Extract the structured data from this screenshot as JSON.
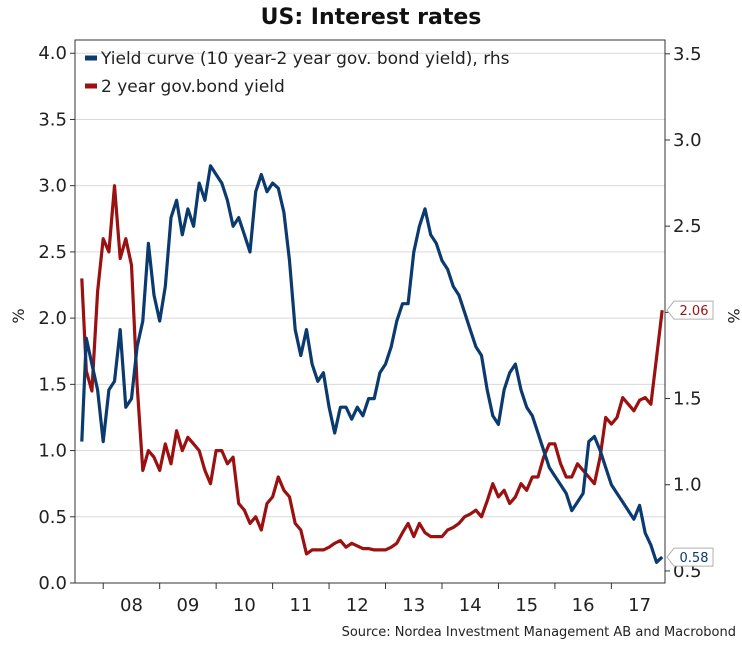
{
  "colors": {
    "yield_curve": "#0b3a6e",
    "two_year": "#9b1010",
    "grid": "#d9d9d9",
    "axis": "#333333"
  },
  "chart_data": {
    "type": "line",
    "title": "US: Interest rates",
    "source": "Source: Nordea Investment Management AB and Macrobond",
    "x_tick_labels": [
      "08",
      "09",
      "10",
      "11",
      "12",
      "13",
      "14",
      "15",
      "16",
      "17"
    ],
    "x_tick_positions": [
      2008,
      2009,
      2010,
      2011,
      2012,
      2013,
      2014,
      2015,
      2016,
      2017
    ],
    "xlim": [
      2007.5,
      2017.95
    ],
    "left_axis": {
      "label": "%",
      "range": [
        0,
        4.1
      ],
      "ticks": [
        "0.0",
        "0.5",
        "1.0",
        "1.5",
        "2.0",
        "2.5",
        "3.0",
        "3.5",
        "4.0"
      ]
    },
    "right_axis": {
      "label": "%",
      "range": [
        0.43,
        3.58
      ],
      "ticks": [
        "0.5",
        "1.0",
        "1.5",
        "2.0",
        "2.5",
        "3.0",
        "3.5"
      ]
    },
    "grid": true,
    "legend_position": "top-left",
    "series": [
      {
        "name": "Yield curve (10 year-2 year gov. bond yield), rhs",
        "axis": "right",
        "end_label": "0.58",
        "x": [
          2007.62,
          2007.7,
          2007.8,
          2007.9,
          2008.0,
          2008.1,
          2008.2,
          2008.3,
          2008.4,
          2008.5,
          2008.6,
          2008.7,
          2008.8,
          2008.9,
          2009.0,
          2009.1,
          2009.2,
          2009.3,
          2009.4,
          2009.5,
          2009.6,
          2009.7,
          2009.8,
          2009.9,
          2010.0,
          2010.1,
          2010.2,
          2010.3,
          2010.4,
          2010.5,
          2010.6,
          2010.7,
          2010.8,
          2010.9,
          2011.0,
          2011.1,
          2011.2,
          2011.3,
          2011.4,
          2011.5,
          2011.6,
          2011.7,
          2011.8,
          2011.9,
          2012.0,
          2012.1,
          2012.2,
          2012.3,
          2012.4,
          2012.5,
          2012.6,
          2012.7,
          2012.8,
          2012.9,
          2013.0,
          2013.1,
          2013.2,
          2013.3,
          2013.4,
          2013.5,
          2013.6,
          2013.7,
          2013.8,
          2013.9,
          2014.0,
          2014.1,
          2014.2,
          2014.3,
          2014.4,
          2014.5,
          2014.6,
          2014.7,
          2014.8,
          2014.9,
          2015.0,
          2015.1,
          2015.2,
          2015.3,
          2015.4,
          2015.5,
          2015.6,
          2015.7,
          2015.8,
          2015.9,
          2016.0,
          2016.1,
          2016.2,
          2016.3,
          2016.4,
          2016.5,
          2016.6,
          2016.7,
          2016.8,
          2016.9,
          2017.0,
          2017.1,
          2017.2,
          2017.3,
          2017.4,
          2017.5,
          2017.6,
          2017.7,
          2017.8,
          2017.9
        ],
        "y": [
          1.25,
          1.85,
          1.7,
          1.55,
          1.25,
          1.55,
          1.6,
          1.9,
          1.45,
          1.5,
          1.8,
          1.95,
          2.4,
          2.1,
          1.95,
          2.15,
          2.55,
          2.65,
          2.45,
          2.6,
          2.5,
          2.75,
          2.65,
          2.85,
          2.8,
          2.75,
          2.65,
          2.5,
          2.55,
          2.45,
          2.35,
          2.7,
          2.8,
          2.7,
          2.75,
          2.72,
          2.58,
          2.3,
          1.9,
          1.75,
          1.9,
          1.7,
          1.6,
          1.65,
          1.45,
          1.3,
          1.45,
          1.45,
          1.38,
          1.45,
          1.4,
          1.5,
          1.5,
          1.65,
          1.7,
          1.8,
          1.95,
          2.05,
          2.05,
          2.35,
          2.5,
          2.6,
          2.45,
          2.4,
          2.3,
          2.25,
          2.15,
          2.1,
          2.0,
          1.9,
          1.8,
          1.75,
          1.55,
          1.4,
          1.35,
          1.55,
          1.65,
          1.7,
          1.55,
          1.45,
          1.4,
          1.3,
          1.2,
          1.1,
          1.05,
          1.0,
          0.95,
          0.85,
          0.9,
          0.95,
          1.25,
          1.28,
          1.2,
          1.1,
          1.0,
          0.95,
          0.9,
          0.85,
          0.8,
          0.88,
          0.72,
          0.65,
          0.55,
          0.58
        ]
      },
      {
        "name": "2 year gov.bond yield",
        "axis": "left",
        "end_label": "2.06",
        "x": [
          2007.62,
          2007.7,
          2007.8,
          2007.9,
          2008.0,
          2008.1,
          2008.2,
          2008.3,
          2008.4,
          2008.5,
          2008.6,
          2008.7,
          2008.8,
          2008.9,
          2009.0,
          2009.1,
          2009.2,
          2009.3,
          2009.4,
          2009.5,
          2009.6,
          2009.7,
          2009.8,
          2009.9,
          2010.0,
          2010.1,
          2010.2,
          2010.3,
          2010.4,
          2010.5,
          2010.6,
          2010.7,
          2010.8,
          2010.9,
          2011.0,
          2011.1,
          2011.2,
          2011.3,
          2011.4,
          2011.5,
          2011.6,
          2011.7,
          2011.8,
          2011.9,
          2012.0,
          2012.1,
          2012.2,
          2012.3,
          2012.4,
          2012.5,
          2012.6,
          2012.7,
          2012.8,
          2012.9,
          2013.0,
          2013.1,
          2013.2,
          2013.3,
          2013.4,
          2013.5,
          2013.6,
          2013.7,
          2013.8,
          2013.9,
          2014.0,
          2014.1,
          2014.2,
          2014.3,
          2014.4,
          2014.5,
          2014.6,
          2014.7,
          2014.8,
          2014.9,
          2015.0,
          2015.1,
          2015.2,
          2015.3,
          2015.4,
          2015.5,
          2015.6,
          2015.7,
          2015.8,
          2015.9,
          2016.0,
          2016.1,
          2016.2,
          2016.3,
          2016.4,
          2016.5,
          2016.6,
          2016.7,
          2016.8,
          2016.9,
          2017.0,
          2017.1,
          2017.2,
          2017.3,
          2017.4,
          2017.5,
          2017.6,
          2017.7,
          2017.8,
          2017.9
        ],
        "y": [
          2.3,
          1.6,
          1.45,
          2.2,
          2.6,
          2.5,
          3.0,
          2.45,
          2.6,
          2.4,
          1.5,
          0.85,
          1.0,
          0.95,
          0.85,
          1.05,
          0.9,
          1.15,
          1.0,
          1.1,
          1.05,
          1.0,
          0.85,
          0.75,
          1.0,
          1.0,
          0.9,
          0.95,
          0.6,
          0.55,
          0.45,
          0.5,
          0.4,
          0.6,
          0.65,
          0.8,
          0.7,
          0.65,
          0.45,
          0.4,
          0.22,
          0.25,
          0.25,
          0.25,
          0.27,
          0.3,
          0.32,
          0.27,
          0.3,
          0.28,
          0.26,
          0.26,
          0.25,
          0.25,
          0.25,
          0.27,
          0.3,
          0.38,
          0.45,
          0.35,
          0.45,
          0.38,
          0.35,
          0.35,
          0.35,
          0.4,
          0.42,
          0.45,
          0.5,
          0.52,
          0.55,
          0.5,
          0.62,
          0.75,
          0.65,
          0.7,
          0.6,
          0.65,
          0.75,
          0.7,
          0.8,
          0.8,
          0.95,
          1.05,
          1.05,
          0.9,
          0.8,
          0.8,
          0.9,
          0.85,
          0.8,
          0.75,
          0.95,
          1.25,
          1.2,
          1.25,
          1.4,
          1.35,
          1.3,
          1.38,
          1.4,
          1.35,
          1.7,
          2.06
        ]
      }
    ]
  }
}
